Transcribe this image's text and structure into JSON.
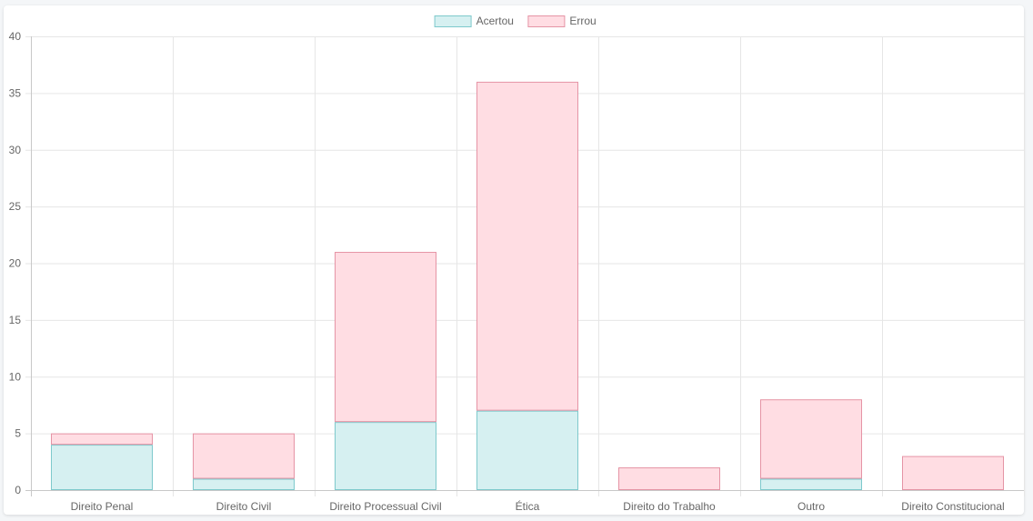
{
  "chart_data": {
    "type": "bar",
    "stacked": true,
    "categories": [
      "Direito Penal",
      "Direito Civil",
      "Direito Processual Civil",
      "Ética",
      "Direito do Trabalho",
      "Outro",
      "Direito Constitucional"
    ],
    "series": [
      {
        "name": "Acertou",
        "values": [
          4,
          1,
          6,
          7,
          0,
          1,
          0
        ],
        "fill": "#d6f0f1",
        "stroke": "#7ec9cc"
      },
      {
        "name": "Errou",
        "values": [
          1,
          4,
          15,
          29,
          2,
          7,
          3
        ],
        "fill": "#ffdde3",
        "stroke": "#e594a5"
      }
    ],
    "ylim": [
      0,
      40
    ],
    "yticks": [
      "0",
      "5",
      "10",
      "15",
      "20",
      "25",
      "30",
      "35",
      "40"
    ],
    "grid": true,
    "legend": "top-center",
    "title": "",
    "xlabel": "",
    "ylabel": ""
  }
}
